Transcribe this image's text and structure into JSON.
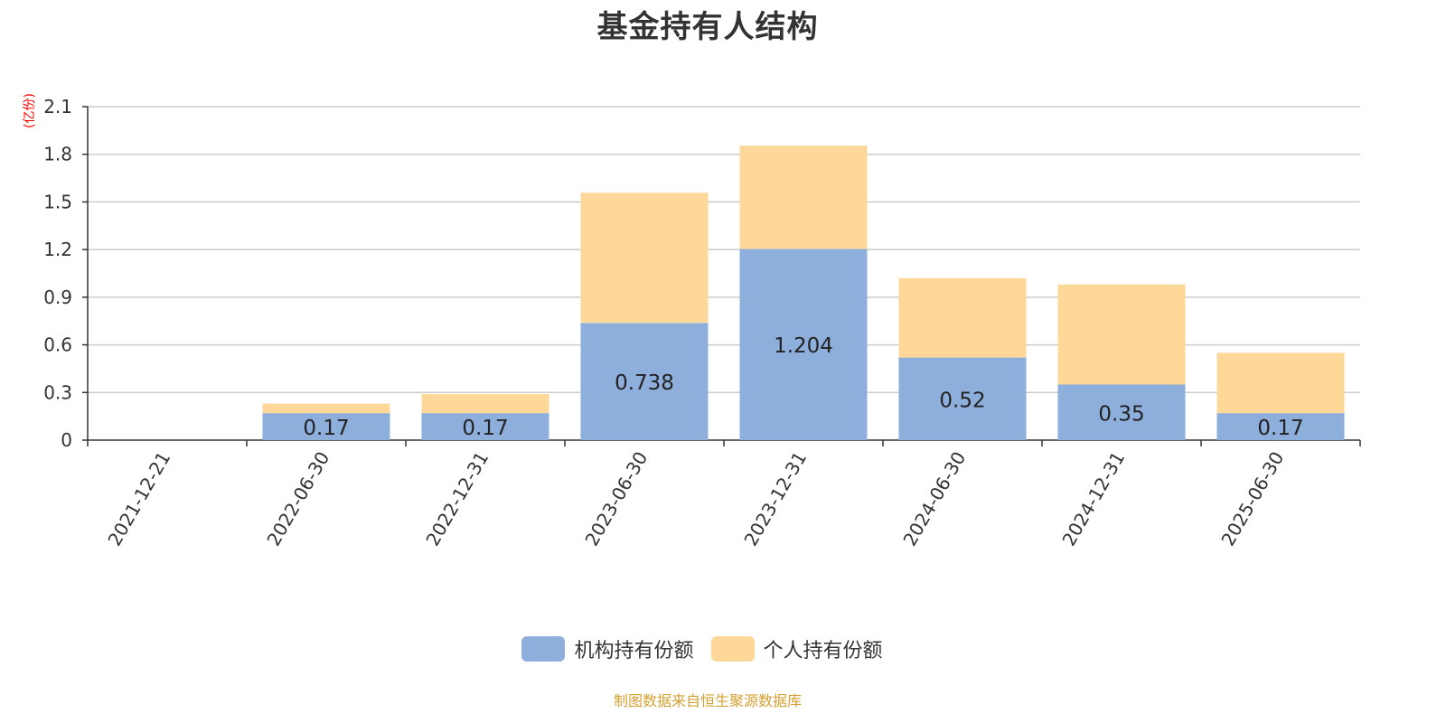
{
  "chart_data": {
    "type": "bar",
    "stacked": true,
    "title": "基金持有人结构",
    "unit_label": "(亿份)",
    "categories": [
      "2021-12-21",
      "2022-06-30",
      "2022-12-31",
      "2023-06-30",
      "2023-12-31",
      "2024-06-30",
      "2024-12-31",
      "2025-06-30"
    ],
    "series": [
      {
        "name": "机构持有份额",
        "color": "#8eaedc",
        "values": [
          0,
          0.17,
          0.17,
          0.738,
          1.204,
          0.52,
          0.35,
          0.17
        ],
        "labels": [
          "",
          "0.17",
          "0.17",
          "0.738",
          "1.204",
          "0.52",
          "0.35",
          "0.17"
        ]
      },
      {
        "name": "个人持有份额",
        "color": "#fed899",
        "values": [
          0,
          0.06,
          0.12,
          0.82,
          0.65,
          0.5,
          0.63,
          0.38
        ]
      }
    ],
    "ylim": [
      0,
      2.1
    ],
    "yticks": [
      "0",
      "0.3",
      "0.6",
      "0.9",
      "1.2",
      "1.5",
      "1.8",
      "2.1"
    ],
    "grid": true,
    "legend_position": "bottom"
  },
  "source_note": "制图数据来自恒生聚源数据库"
}
